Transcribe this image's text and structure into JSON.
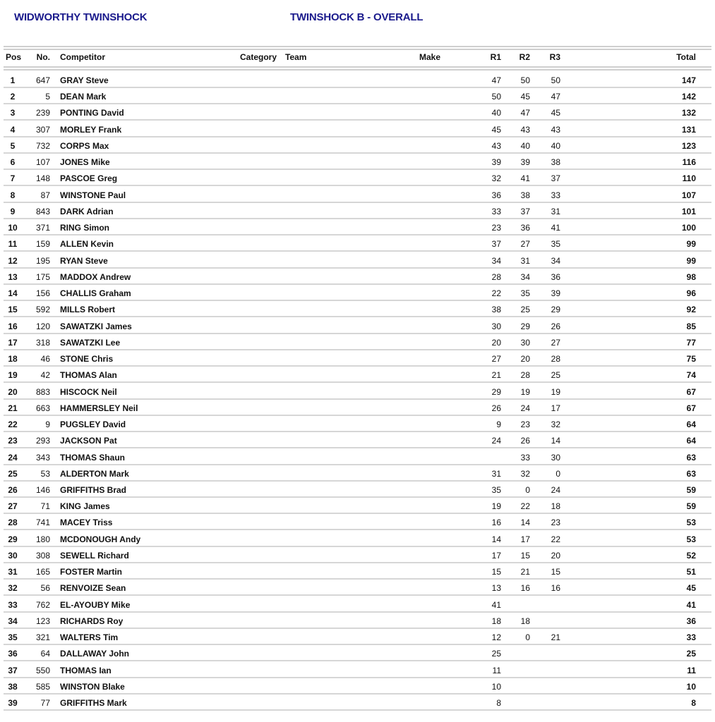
{
  "header": {
    "event_title": "WIDWORTHY TWINSHOCK",
    "class_title": "TWINSHOCK B - OVERALL"
  },
  "columns": {
    "pos": "Pos",
    "no": "No.",
    "competitor": "Competitor",
    "category": "Category",
    "team": "Team",
    "make": "Make",
    "r1": "R1",
    "r2": "R2",
    "r3": "R3",
    "total": "Total"
  },
  "rows": [
    [
      "1",
      "647",
      "GRAY Steve",
      "47",
      "50",
      "50",
      "147"
    ],
    [
      "2",
      "5",
      "DEAN Mark",
      "50",
      "45",
      "47",
      "142"
    ],
    [
      "3",
      "239",
      "PONTING David",
      "40",
      "47",
      "45",
      "132"
    ],
    [
      "4",
      "307",
      "MORLEY Frank",
      "45",
      "43",
      "43",
      "131"
    ],
    [
      "5",
      "732",
      "CORPS Max",
      "43",
      "40",
      "40",
      "123"
    ],
    [
      "6",
      "107",
      "JONES Mike",
      "39",
      "39",
      "38",
      "116"
    ],
    [
      "7",
      "148",
      "PASCOE Greg",
      "32",
      "41",
      "37",
      "110"
    ],
    [
      "8",
      "87",
      "WINSTONE Paul",
      "36",
      "38",
      "33",
      "107"
    ],
    [
      "9",
      "843",
      "DARK Adrian",
      "33",
      "37",
      "31",
      "101"
    ],
    [
      "10",
      "371",
      "RING Simon",
      "23",
      "36",
      "41",
      "100"
    ],
    [
      "11",
      "159",
      "ALLEN Kevin",
      "37",
      "27",
      "35",
      "99"
    ],
    [
      "12",
      "195",
      "RYAN Steve",
      "34",
      "31",
      "34",
      "99"
    ],
    [
      "13",
      "175",
      "MADDOX Andrew",
      "28",
      "34",
      "36",
      "98"
    ],
    [
      "14",
      "156",
      "CHALLIS Graham",
      "22",
      "35",
      "39",
      "96"
    ],
    [
      "15",
      "592",
      "MILLS Robert",
      "38",
      "25",
      "29",
      "92"
    ],
    [
      "16",
      "120",
      "SAWATZKI James",
      "30",
      "29",
      "26",
      "85"
    ],
    [
      "17",
      "318",
      "SAWATZKI Lee",
      "20",
      "30",
      "27",
      "77"
    ],
    [
      "18",
      "46",
      "STONE Chris",
      "27",
      "20",
      "28",
      "75"
    ],
    [
      "19",
      "42",
      "THOMAS Alan",
      "21",
      "28",
      "25",
      "74"
    ],
    [
      "20",
      "883",
      "HISCOCK Neil",
      "29",
      "19",
      "19",
      "67"
    ],
    [
      "21",
      "663",
      "HAMMERSLEY Neil",
      "26",
      "24",
      "17",
      "67"
    ],
    [
      "22",
      "9",
      "PUGSLEY David",
      "9",
      "23",
      "32",
      "64"
    ],
    [
      "23",
      "293",
      "JACKSON Pat",
      "24",
      "26",
      "14",
      "64"
    ],
    [
      "24",
      "343",
      "THOMAS Shaun",
      "",
      "33",
      "30",
      "63"
    ],
    [
      "25",
      "53",
      "ALDERTON Mark",
      "31",
      "32",
      "0",
      "63"
    ],
    [
      "26",
      "146",
      "GRIFFITHS Brad",
      "35",
      "0",
      "24",
      "59"
    ],
    [
      "27",
      "71",
      "KING James",
      "19",
      "22",
      "18",
      "59"
    ],
    [
      "28",
      "741",
      "MACEY Triss",
      "16",
      "14",
      "23",
      "53"
    ],
    [
      "29",
      "180",
      "MCDONOUGH Andy",
      "14",
      "17",
      "22",
      "53"
    ],
    [
      "30",
      "308",
      "SEWELL Richard",
      "17",
      "15",
      "20",
      "52"
    ],
    [
      "31",
      "165",
      "FOSTER Martin",
      "15",
      "21",
      "15",
      "51"
    ],
    [
      "32",
      "56",
      "RENVOIZE Sean",
      "13",
      "16",
      "16",
      "45"
    ],
    [
      "33",
      "762",
      "EL-AYOUBY Mike",
      "41",
      "",
      "",
      "41"
    ],
    [
      "34",
      "123",
      "RICHARDS Roy",
      "18",
      "18",
      "",
      "36"
    ],
    [
      "35",
      "321",
      "WALTERS Tim",
      "12",
      "0",
      "21",
      "33"
    ],
    [
      "36",
      "64",
      "DALLAWAY John",
      "25",
      "",
      "",
      "25"
    ],
    [
      "37",
      "550",
      "THOMAS Ian",
      "11",
      "",
      "",
      "11"
    ],
    [
      "38",
      "585",
      "WINSTON Blake",
      "10",
      "",
      "",
      "10"
    ],
    [
      "39",
      "77",
      "GRIFFITHS Mark",
      "8",
      "",
      "",
      "8"
    ]
  ]
}
